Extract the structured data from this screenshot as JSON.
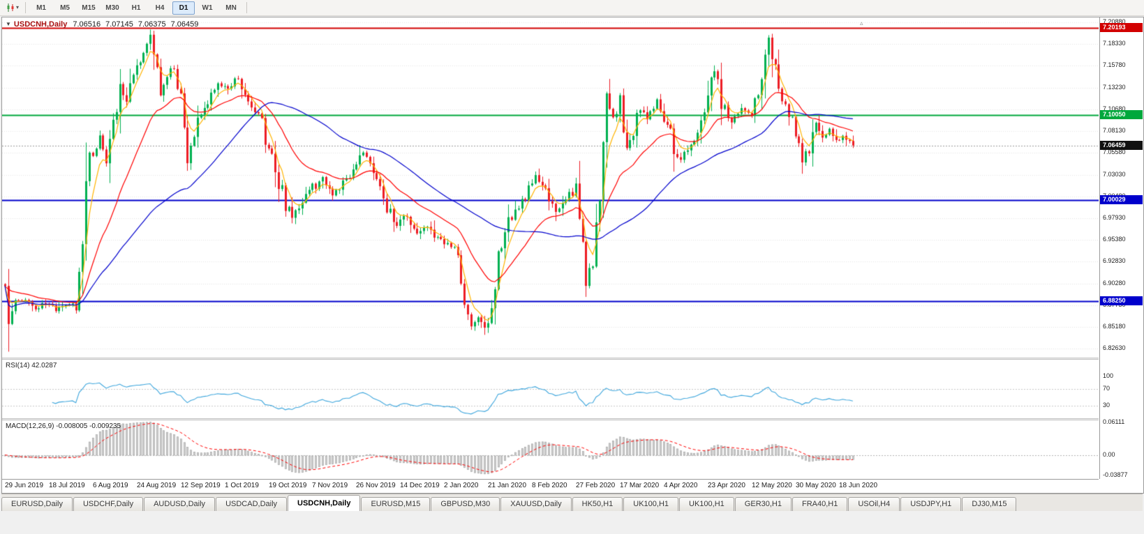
{
  "toolbar": {
    "timeframes": [
      "M1",
      "M5",
      "M15",
      "M30",
      "H1",
      "H4",
      "D1",
      "W1",
      "MN"
    ],
    "active_timeframe": "D1"
  },
  "icons": {
    "collapse_arrow": "▼",
    "caret_down": "▾",
    "shift_marker": "▵"
  },
  "chart": {
    "symbol_title": "USDCNH,Daily",
    "ohlc": {
      "open": "7.06516",
      "high": "7.07145",
      "low": "7.06375",
      "close": "7.06459"
    },
    "rsi_label": "RSI(14) 42.0287",
    "macd_label": "MACD(12,26,9) -0.008005 -0.009235",
    "price_ticks": [
      "7.20880",
      "7.18330",
      "7.15780",
      "7.13230",
      "7.10680",
      "7.08130",
      "7.05580",
      "7.03030",
      "7.00480",
      "6.97930",
      "6.95380",
      "6.92830",
      "6.90280",
      "6.87730",
      "6.85180",
      "6.82630"
    ],
    "rsi_ticks": [
      "100",
      "70",
      "30"
    ],
    "macd_ticks": [
      "0.06111",
      "0.00",
      "-0.03877"
    ],
    "date_labels": [
      "29 Jun 2019",
      "18 Jul 2019",
      "6 Aug 2019",
      "24 Aug 2019",
      "12 Sep 2019",
      "1 Oct 2019",
      "19 Oct 2019",
      "7 Nov 2019",
      "26 Nov 2019",
      "14 Dec 2019",
      "2 Jan 2020",
      "21 Jan 2020",
      "8 Feb 2020",
      "27 Feb 2020",
      "17 Mar 2020",
      "4 Apr 2020",
      "23 Apr 2020",
      "12 May 2020",
      "30 May 2020",
      "18 Jun 2020"
    ],
    "flags": {
      "resistance": {
        "label": "7.20193",
        "color": "#d20000"
      },
      "green_level": {
        "label": "7.10050",
        "color": "#00a83c"
      },
      "current_price": {
        "label": "7.06459",
        "color": "#111111"
      },
      "blue_upper": {
        "label": "7.00029",
        "color": "#0000cc"
      },
      "blue_lower": {
        "label": "6.88250",
        "color": "#0000cc"
      }
    }
  },
  "chart_data": {
    "type": "candlestick",
    "symbol": "USDCNH",
    "timeframe": "Daily",
    "visible_price_range": [
      6.816,
      7.2145
    ],
    "bars_visible": 252,
    "bar_spacing_px": 4.84,
    "up_color": "#00b050",
    "down_color": "#ed1c24",
    "anchor_closes": [
      [
        0,
        6.9
      ],
      [
        1,
        6.852
      ],
      [
        3,
        6.878
      ],
      [
        6,
        6.884
      ],
      [
        9,
        6.872
      ],
      [
        12,
        6.88
      ],
      [
        15,
        6.871
      ],
      [
        18,
        6.878
      ],
      [
        21,
        6.883
      ],
      [
        23,
        6.945
      ],
      [
        24,
        7.02
      ],
      [
        25,
        7.065
      ],
      [
        26,
        7.048
      ],
      [
        28,
        7.075
      ],
      [
        30,
        7.04
      ],
      [
        32,
        7.095
      ],
      [
        34,
        7.135
      ],
      [
        36,
        7.112
      ],
      [
        38,
        7.152
      ],
      [
        40,
        7.17
      ],
      [
        43,
        7.19
      ],
      [
        45,
        7.148
      ],
      [
        46,
        7.118
      ],
      [
        48,
        7.152
      ],
      [
        50,
        7.163
      ],
      [
        52,
        7.118
      ],
      [
        54,
        7.048
      ],
      [
        56,
        7.082
      ],
      [
        58,
        7.105
      ],
      [
        60,
        7.118
      ],
      [
        63,
        7.14
      ],
      [
        66,
        7.128
      ],
      [
        68,
        7.146
      ],
      [
        71,
        7.13
      ],
      [
        74,
        7.108
      ],
      [
        77,
        7.075
      ],
      [
        80,
        7.04
      ],
      [
        83,
        6.995
      ],
      [
        85,
        6.98
      ],
      [
        88,
        7.0
      ],
      [
        91,
        7.015
      ],
      [
        94,
        7.025
      ],
      [
        97,
        7.005
      ],
      [
        100,
        7.02
      ],
      [
        103,
        7.03
      ],
      [
        106,
        7.058
      ],
      [
        108,
        7.035
      ],
      [
        111,
        7.018
      ],
      [
        113,
        6.99
      ],
      [
        116,
        6.972
      ],
      [
        119,
        6.984
      ],
      [
        122,
        6.96
      ],
      [
        125,
        6.971
      ],
      [
        128,
        6.954
      ],
      [
        131,
        6.95
      ],
      [
        134,
        6.93
      ],
      [
        136,
        6.88
      ],
      [
        138,
        6.85
      ],
      [
        140,
        6.864
      ],
      [
        142,
        6.851
      ],
      [
        144,
        6.88
      ],
      [
        146,
        6.93
      ],
      [
        148,
        6.964
      ],
      [
        151,
        6.988
      ],
      [
        154,
        7.0
      ],
      [
        157,
        7.028
      ],
      [
        160,
        7.01
      ],
      [
        163,
        6.986
      ],
      [
        166,
        7.004
      ],
      [
        169,
        7.01
      ],
      [
        171,
        6.958
      ],
      [
        172,
        6.904
      ],
      [
        174,
        6.934
      ],
      [
        176,
        7.008
      ],
      [
        178,
        7.118
      ],
      [
        180,
        7.098
      ],
      [
        182,
        7.114
      ],
      [
        184,
        7.062
      ],
      [
        186,
        7.084
      ],
      [
        188,
        7.108
      ],
      [
        190,
        7.094
      ],
      [
        193,
        7.118
      ],
      [
        196,
        7.088
      ],
      [
        198,
        7.064
      ],
      [
        200,
        7.046
      ],
      [
        203,
        7.07
      ],
      [
        206,
        7.084
      ],
      [
        208,
        7.124
      ],
      [
        210,
        7.154
      ],
      [
        212,
        7.118
      ],
      [
        215,
        7.094
      ],
      [
        218,
        7.108
      ],
      [
        221,
        7.098
      ],
      [
        223,
        7.124
      ],
      [
        225,
        7.172
      ],
      [
        226,
        7.19
      ],
      [
        228,
        7.148
      ],
      [
        230,
        7.124
      ],
      [
        232,
        7.1
      ],
      [
        234,
        7.086
      ],
      [
        236,
        7.046
      ],
      [
        238,
        7.064
      ],
      [
        240,
        7.088
      ],
      [
        242,
        7.074
      ],
      [
        244,
        7.084
      ],
      [
        246,
        7.068
      ],
      [
        248,
        7.076
      ],
      [
        251,
        7.0646
      ]
    ],
    "horizontal_lines": [
      {
        "price": 7.20193,
        "color": "#d20000",
        "style": "solid"
      },
      {
        "price": 7.1005,
        "color": "#00a83c",
        "style": "solid"
      },
      {
        "price": 7.06459,
        "color": "#9a9a9a",
        "style": "dotted"
      },
      {
        "price": 7.00029,
        "color": "#0000cc",
        "style": "solid"
      },
      {
        "price": 6.8825,
        "color": "#0000cc",
        "style": "solid"
      }
    ],
    "moving_averages": [
      {
        "period": 5,
        "type": "ema",
        "color": "#ffb400"
      },
      {
        "period": 22,
        "type": "ema",
        "color": "#ff0000"
      },
      {
        "period": 55,
        "type": "sma",
        "color": "#0000cd"
      }
    ],
    "indicators": [
      {
        "name": "RSI",
        "params": "14",
        "value": 42.0287,
        "levels": [
          70,
          30
        ],
        "color": "#3da6dd"
      },
      {
        "name": "MACD",
        "params": "12,26,9",
        "values": [
          -0.008005,
          -0.009235
        ],
        "hist_color": "#d2d2d2",
        "hist_border": "#a2a2a2",
        "signal_color": "#ff0000"
      }
    ]
  },
  "tabbar": {
    "active_index": 4,
    "tabs": [
      "EURUSD,Daily",
      "USDCHF,Daily",
      "AUDUSD,Daily",
      "USDCAD,Daily",
      "USDCNH,Daily",
      "EURUSD,M15",
      "GBPUSD,M30",
      "XAUUSD,Daily",
      "HK50,H1",
      "UK100,H1",
      "UK100,H1",
      "GER30,H1",
      "FRA40,H1",
      "USOil,H4",
      "USDJPY,H1",
      "DJ30,M15"
    ]
  }
}
